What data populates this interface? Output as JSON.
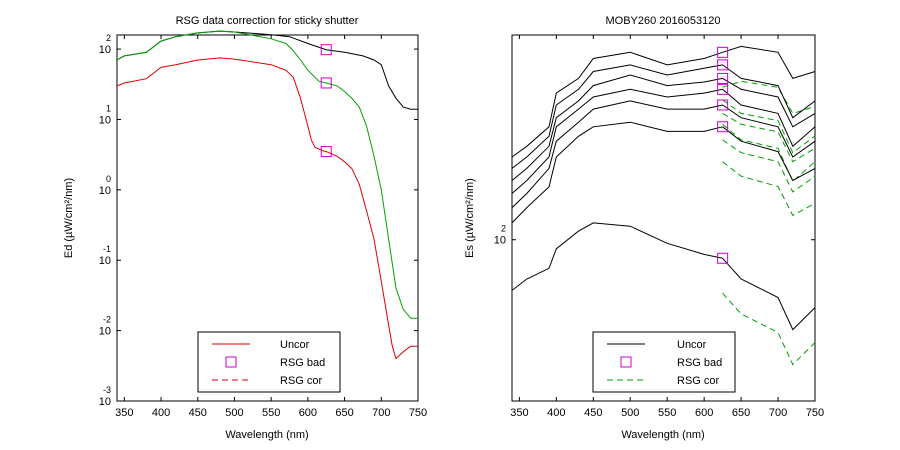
{
  "chart_data": [
    {
      "type": "line",
      "title": "RSG data correction for sticky shutter",
      "xlabel": "Wavelength (nm)",
      "ylabel": "Ed (µW/cm²/nm)",
      "xlim": [
        340,
        750
      ],
      "yscale": "log",
      "ylim_log10": [
        -3,
        2.2
      ],
      "xticks": [
        350,
        400,
        450,
        500,
        550,
        600,
        650,
        700,
        750
      ],
      "xtick_labels": [
        "350",
        "400",
        "450",
        "500",
        "550",
        "600",
        "650",
        "700",
        "750"
      ],
      "yticks": [
        {
          "base": "10",
          "exp": "2"
        },
        {
          "base": "10",
          "exp": "1"
        },
        {
          "base": "10",
          "exp": "0"
        },
        {
          "base": "10",
          "exp": "-1"
        },
        {
          "base": "10",
          "exp": "-2"
        },
        {
          "base": "10",
          "exp": "-3"
        }
      ],
      "legend": {
        "position": "bottom-center",
        "entries": [
          {
            "label": "Uncor",
            "style": "solid",
            "color": "#e00000"
          },
          {
            "label": "RSG bad",
            "style": "marker-square",
            "color": "#cc00cc"
          },
          {
            "label": "RSG cor",
            "style": "dashed",
            "color": "#e00000"
          }
        ]
      },
      "series": [
        {
          "style": "solid",
          "color": "#000000",
          "x": [
            340,
            350,
            380,
            400,
            420,
            450,
            480,
            500,
            550,
            575,
            600,
            625,
            650,
            675,
            690,
            700,
            710,
            720,
            730,
            740,
            750
          ],
          "y": [
            70,
            80,
            90,
            130,
            150,
            170,
            180,
            175,
            160,
            150,
            120,
            98,
            90,
            80,
            70,
            60,
            30,
            20,
            15,
            14,
            14
          ]
        },
        {
          "style": "solid",
          "color": "#00a000",
          "x": [
            340,
            350,
            380,
            400,
            420,
            450,
            480,
            500,
            550,
            570,
            580,
            590,
            600,
            615,
            625,
            640,
            650,
            660,
            670,
            680,
            690,
            700,
            710,
            720,
            730,
            740,
            750
          ],
          "y": [
            70,
            80,
            90,
            130,
            150,
            170,
            180,
            175,
            140,
            120,
            95,
            70,
            50,
            35,
            33,
            30,
            25,
            20,
            15,
            8,
            3,
            1,
            0.2,
            0.04,
            0.02,
            0.015,
            0.015
          ]
        },
        {
          "style": "solid",
          "color": "#e00000",
          "x": [
            340,
            350,
            380,
            400,
            420,
            450,
            480,
            500,
            550,
            570,
            580,
            590,
            600,
            605,
            610,
            620,
            625,
            640,
            650,
            660,
            670,
            680,
            690,
            700,
            710,
            715,
            720,
            730,
            740,
            750
          ],
          "y": [
            30,
            33,
            38,
            55,
            60,
            70,
            75,
            72,
            60,
            50,
            40,
            20,
            8,
            5,
            4,
            3.6,
            3.5,
            3,
            2.5,
            2,
            1.2,
            0.5,
            0.2,
            0.05,
            0.012,
            0.006,
            0.004,
            0.005,
            0.006,
            0.006
          ]
        }
      ],
      "markers": [
        {
          "x": 625,
          "y": 98
        },
        {
          "x": 625,
          "y": 33
        },
        {
          "x": 625,
          "y": 3.5
        }
      ]
    },
    {
      "type": "line",
      "title": "MOBY260  2016053120",
      "xlabel": "Wavelength (nm)",
      "ylabel": "Es (µW/cm²/nm)",
      "xlim": [
        340,
        750
      ],
      "yscale": "log",
      "yticks": [
        {
          "base": "10",
          "exp": "2"
        }
      ],
      "xticks": [
        350,
        400,
        450,
        500,
        550,
        600,
        650,
        700,
        750
      ],
      "xtick_labels": [
        "350",
        "400",
        "450",
        "500",
        "550",
        "600",
        "650",
        "700",
        "750"
      ],
      "legend": {
        "position": "bottom-center",
        "entries": [
          {
            "label": "Uncor",
            "style": "solid",
            "color": "#000000"
          },
          {
            "label": "RSG bad",
            "style": "marker-square",
            "color": "#cc00cc"
          },
          {
            "label": "RSG cor",
            "style": "dashed",
            "color": "#00a000"
          }
        ]
      },
      "series": [
        {
          "x": [
            340,
            360,
            390,
            400,
            430,
            450,
            500,
            550,
            600,
            625,
            650,
            700,
            720,
            750
          ],
          "y": [
            160,
            170,
            190,
            230,
            250,
            280,
            290,
            270,
            280,
            290,
            300,
            290,
            250,
            260
          ]
        },
        {
          "x": [
            340,
            360,
            390,
            400,
            430,
            450,
            500,
            550,
            600,
            625,
            650,
            700,
            720,
            750
          ],
          "y": [
            150,
            160,
            180,
            215,
            235,
            260,
            270,
            255,
            265,
            270,
            250,
            240,
            200,
            220
          ]
        },
        {
          "x": [
            340,
            360,
            390,
            400,
            430,
            450,
            500,
            550,
            600,
            625,
            650,
            700,
            720,
            750
          ],
          "y": [
            140,
            150,
            170,
            200,
            220,
            240,
            255,
            240,
            245,
            250,
            235,
            225,
            190,
            205
          ]
        },
        {
          "x": [
            340,
            360,
            390,
            400,
            430,
            450,
            500,
            550,
            600,
            625,
            650,
            700,
            720,
            750
          ],
          "y": [
            130,
            140,
            160,
            190,
            210,
            225,
            235,
            225,
            230,
            235,
            215,
            205,
            170,
            190
          ]
        },
        {
          "x": [
            340,
            360,
            390,
            400,
            430,
            450,
            500,
            550,
            600,
            625,
            650,
            700,
            720,
            750
          ],
          "y": [
            120,
            130,
            150,
            175,
            195,
            210,
            220,
            210,
            210,
            215,
            200,
            190,
            160,
            175
          ]
        },
        {
          "x": [
            340,
            360,
            390,
            400,
            430,
            450,
            500,
            550,
            600,
            625,
            650,
            700,
            720,
            750
          ],
          "y": [
            110,
            120,
            135,
            160,
            180,
            190,
            195,
            185,
            185,
            190,
            175,
            165,
            140,
            150
          ]
        },
        {
          "x": [
            340,
            360,
            390,
            400,
            430,
            450,
            500,
            550,
            600,
            625,
            650,
            700,
            720,
            750
          ],
          "y": [
            75,
            80,
            85,
            95,
            105,
            110,
            108,
            98,
            92,
            90,
            80,
            72,
            60,
            68
          ]
        }
      ],
      "markers": [
        {
          "x": 625,
          "y": 290
        },
        {
          "x": 625,
          "y": 270
        },
        {
          "x": 625,
          "y": 250
        },
        {
          "x": 625,
          "y": 235
        },
        {
          "x": 625,
          "y": 215
        },
        {
          "x": 625,
          "y": 190
        },
        {
          "x": 625,
          "y": 90
        }
      ]
    }
  ]
}
